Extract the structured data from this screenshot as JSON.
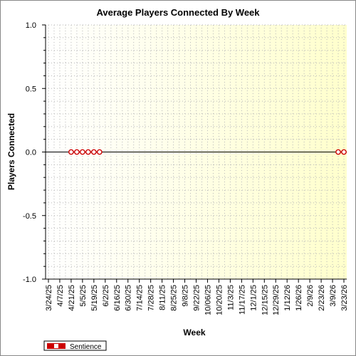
{
  "chart_data": {
    "type": "line",
    "title": "Average Players Connected By Week",
    "xlabel": "Week",
    "ylabel": "Players Connected",
    "ylim": [
      -1.0,
      1.0
    ],
    "y_ticks": [
      "1.0",
      "0.5",
      "0.0",
      "-0.5",
      "-1.0"
    ],
    "x_tick_labels": [
      "3/24/25",
      "4/7/25",
      "4/21/25",
      "5/5/25",
      "5/19/25",
      "6/2/25",
      "6/16/25",
      "6/30/25",
      "7/14/25",
      "7/28/25",
      "8/11/25",
      "8/25/25",
      "9/8/25",
      "9/22/25",
      "10/06/25",
      "10/20/25",
      "11/3/25",
      "11/17/25",
      "12/1/25",
      "12/15/25",
      "12/29/25",
      "1/12/26",
      "1/26/26",
      "2/9/26",
      "2/23/26",
      "3/9/26",
      "3/23/26"
    ],
    "grid": true,
    "legend_position": "bottom-left",
    "series": [
      {
        "name": "Sentience",
        "color": "#cc0000",
        "points": [
          {
            "x": "4/21/25",
            "y": 0
          },
          {
            "x": "4/28/25",
            "y": 0
          },
          {
            "x": "5/5/25",
            "y": 0
          },
          {
            "x": "5/12/25",
            "y": 0
          },
          {
            "x": "5/19/25",
            "y": 0
          },
          {
            "x": "5/26/25",
            "y": 0
          },
          {
            "x": "3/16/26",
            "y": 0
          },
          {
            "x": "3/23/26",
            "y": 0
          }
        ]
      }
    ]
  },
  "colors": {
    "plot_bg_left": "#ffffff",
    "plot_bg_right": "#ffffcc",
    "grid": "#b8b8b8",
    "zero_line": "#000000",
    "marker_fill": "#ffffff"
  }
}
